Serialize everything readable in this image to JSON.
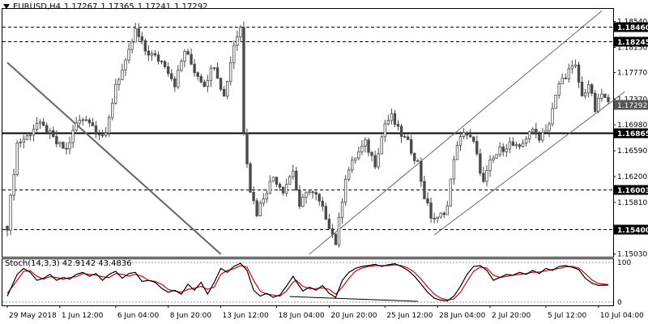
{
  "header": {
    "symbol": "EURUSD,H4",
    "open": "1.17267",
    "high": "1.17365",
    "low": "1.17241",
    "close": "1.17292"
  },
  "stoch_header": {
    "name": "Stoch(14,3,3)",
    "main": "42.9142",
    "signal": "43.4836"
  },
  "colors": {
    "background": "#ffffff",
    "candle": "#4a4a4a",
    "level": "#000000",
    "trend": "#666666",
    "stoch_main": "#000000",
    "stoch_signal": "#dd0000"
  },
  "chart_data": {
    "type": "candlestick",
    "ylim": [
      1.1499,
      1.1873
    ],
    "y_ticks": [
      "1.18540",
      "1.18150",
      "1.17770",
      "1.17370",
      "1.16980",
      "1.16590",
      "1.16200",
      "1.15810",
      "1.15400",
      "1.15030"
    ],
    "x_ticks": [
      "29 May 2018",
      "1 Jun 12:00",
      "6 Jun 04:00",
      "8 Jun 20:00",
      "13 Jun 12:00",
      "18 Jun 04:00",
      "20 Jun 20:00",
      "25 Jun 12:00",
      "28 Jun 04:00",
      "2 Jul 20:00",
      "5 Jul 12:00",
      "10 Jul 04:00"
    ],
    "levels": [
      {
        "label": "1.18460",
        "value": 1.1846,
        "style": "dashed"
      },
      {
        "label": "1.18245",
        "value": 1.18245,
        "style": "dashed"
      },
      {
        "label": "1.16865",
        "value": 1.16865,
        "style": "solid"
      },
      {
        "label": "1.16003",
        "value": 1.16003,
        "style": "dashed"
      },
      {
        "label": "1.15400",
        "value": 1.154,
        "style": "dashed"
      }
    ],
    "current_price": {
      "label": "1.17292",
      "value": 1.17292
    },
    "trend_lines": [
      {
        "name": "downtrend",
        "points": [
          [
            0,
            1.1792
          ],
          [
            65,
            1.1503
          ]
        ],
        "color": "#666666"
      },
      {
        "name": "channel-lower",
        "points": [
          [
            130,
            1.1532
          ],
          [
            188,
            1.1748
          ]
        ],
        "color": "#666666"
      },
      {
        "name": "channel-upper",
        "points": [
          [
            92,
            1.1503
          ],
          [
            181,
            1.187
          ]
        ],
        "color": "#666666"
      }
    ],
    "price_path": [
      [
        0,
        1.1545
      ],
      [
        3,
        1.167
      ],
      [
        6,
        1.168
      ],
      [
        9,
        1.17
      ],
      [
        12,
        1.169
      ],
      [
        15,
        1.167
      ],
      [
        18,
        1.166
      ],
      [
        21,
        1.17
      ],
      [
        24,
        1.171
      ],
      [
        27,
        1.169
      ],
      [
        30,
        1.168
      ],
      [
        33,
        1.176
      ],
      [
        36,
        1.179
      ],
      [
        39,
        1.184
      ],
      [
        42,
        1.181
      ],
      [
        45,
        1.18
      ],
      [
        48,
        1.179
      ],
      [
        51,
        1.176
      ],
      [
        54,
        1.181
      ],
      [
        57,
        1.178
      ],
      [
        60,
        1.176
      ],
      [
        63,
        1.179
      ],
      [
        66,
        1.174
      ],
      [
        69,
        1.182
      ],
      [
        71,
        1.1845
      ],
      [
        72,
        1.169
      ],
      [
        74,
        1.16
      ],
      [
        76,
        1.1565
      ],
      [
        78,
        1.159
      ],
      [
        81,
        1.162
      ],
      [
        84,
        1.16
      ],
      [
        87,
        1.163
      ],
      [
        89,
        1.157
      ],
      [
        91,
        1.16
      ],
      [
        94,
        1.159
      ],
      [
        97,
        1.156
      ],
      [
        100,
        1.152
      ],
      [
        103,
        1.162
      ],
      [
        106,
        1.165
      ],
      [
        109,
        1.167
      ],
      [
        112,
        1.164
      ],
      [
        115,
        1.17
      ],
      [
        117,
        1.171
      ],
      [
        119,
        1.169
      ],
      [
        122,
        1.167
      ],
      [
        125,
        1.164
      ],
      [
        127,
        1.159
      ],
      [
        129,
        1.156
      ],
      [
        131,
        1.1555
      ],
      [
        134,
        1.1575
      ],
      [
        136,
        1.165
      ],
      [
        139,
        1.169
      ],
      [
        142,
        1.167
      ],
      [
        145,
        1.161
      ],
      [
        147,
        1.164
      ],
      [
        150,
        1.166
      ],
      [
        153,
        1.167
      ],
      [
        156,
        1.166
      ],
      [
        159,
        1.169
      ],
      [
        162,
        1.168
      ],
      [
        165,
        1.17
      ],
      [
        168,
        1.176
      ],
      [
        171,
        1.178
      ],
      [
        173,
        1.1785
      ],
      [
        175,
        1.174
      ],
      [
        177,
        1.176
      ],
      [
        179,
        1.172
      ],
      [
        181,
        1.1745
      ],
      [
        183,
        1.1729
      ]
    ],
    "oscillator": {
      "name": "Stoch(14,3,3)",
      "ylim": [
        0,
        100
      ],
      "y_ticks": [
        "100",
        "0"
      ],
      "main_line": [
        [
          0,
          15
        ],
        [
          3,
          70
        ],
        [
          5,
          85
        ],
        [
          7,
          75
        ],
        [
          9,
          55
        ],
        [
          11,
          60
        ],
        [
          13,
          70
        ],
        [
          15,
          55
        ],
        [
          17,
          62
        ],
        [
          19,
          58
        ],
        [
          21,
          70
        ],
        [
          23,
          75
        ],
        [
          25,
          65
        ],
        [
          27,
          72
        ],
        [
          29,
          55
        ],
        [
          31,
          70
        ],
        [
          33,
          78
        ],
        [
          35,
          60
        ],
        [
          37,
          72
        ],
        [
          39,
          75
        ],
        [
          41,
          52
        ],
        [
          43,
          55
        ],
        [
          45,
          50
        ],
        [
          47,
          35
        ],
        [
          49,
          25
        ],
        [
          51,
          30
        ],
        [
          53,
          20
        ],
        [
          55,
          45
        ],
        [
          57,
          30
        ],
        [
          59,
          50
        ],
        [
          61,
          20
        ],
        [
          63,
          50
        ],
        [
          65,
          85
        ],
        [
          67,
          75
        ],
        [
          69,
          90
        ],
        [
          71,
          98
        ],
        [
          73,
          80
        ],
        [
          75,
          30
        ],
        [
          77,
          15
        ],
        [
          79,
          22
        ],
        [
          81,
          12
        ],
        [
          83,
          18
        ],
        [
          85,
          40
        ],
        [
          87,
          65
        ],
        [
          88,
          52
        ],
        [
          90,
          28
        ],
        [
          92,
          38
        ],
        [
          94,
          30
        ],
        [
          96,
          42
        ],
        [
          98,
          22
        ],
        [
          100,
          12
        ],
        [
          102,
          55
        ],
        [
          104,
          75
        ],
        [
          106,
          85
        ],
        [
          108,
          90
        ],
        [
          110,
          92
        ],
        [
          112,
          95
        ],
        [
          114,
          90
        ],
        [
          116,
          94
        ],
        [
          118,
          97
        ],
        [
          120,
          90
        ],
        [
          122,
          80
        ],
        [
          124,
          65
        ],
        [
          126,
          45
        ],
        [
          128,
          25
        ],
        [
          130,
          10
        ],
        [
          132,
          5
        ],
        [
          134,
          3
        ],
        [
          136,
          15
        ],
        [
          138,
          40
        ],
        [
          140,
          70
        ],
        [
          142,
          90
        ],
        [
          144,
          92
        ],
        [
          146,
          80
        ],
        [
          148,
          55
        ],
        [
          150,
          62
        ],
        [
          152,
          70
        ],
        [
          154,
          68
        ],
        [
          156,
          75
        ],
        [
          158,
          70
        ],
        [
          160,
          80
        ],
        [
          162,
          72
        ],
        [
          164,
          85
        ],
        [
          166,
          80
        ],
        [
          168,
          90
        ],
        [
          170,
          92
        ],
        [
          172,
          88
        ],
        [
          174,
          82
        ],
        [
          176,
          60
        ],
        [
          178,
          48
        ],
        [
          180,
          42
        ],
        [
          183,
          43
        ]
      ],
      "signal_line": [
        [
          0,
          22
        ],
        [
          3,
          55
        ],
        [
          5,
          78
        ],
        [
          7,
          79
        ],
        [
          9,
          65
        ],
        [
          11,
          58
        ],
        [
          13,
          64
        ],
        [
          15,
          62
        ],
        [
          17,
          58
        ],
        [
          19,
          62
        ],
        [
          21,
          64
        ],
        [
          23,
          72
        ],
        [
          25,
          70
        ],
        [
          27,
          68
        ],
        [
          29,
          64
        ],
        [
          31,
          62
        ],
        [
          33,
          72
        ],
        [
          35,
          70
        ],
        [
          37,
          66
        ],
        [
          39,
          70
        ],
        [
          41,
          65
        ],
        [
          43,
          55
        ],
        [
          45,
          52
        ],
        [
          47,
          45
        ],
        [
          49,
          32
        ],
        [
          51,
          28
        ],
        [
          53,
          25
        ],
        [
          55,
          32
        ],
        [
          57,
          35
        ],
        [
          59,
          40
        ],
        [
          61,
          32
        ],
        [
          63,
          38
        ],
        [
          65,
          70
        ],
        [
          67,
          80
        ],
        [
          69,
          84
        ],
        [
          71,
          92
        ],
        [
          73,
          88
        ],
        [
          75,
          55
        ],
        [
          77,
          28
        ],
        [
          79,
          20
        ],
        [
          81,
          18
        ],
        [
          83,
          15
        ],
        [
          85,
          28
        ],
        [
          87,
          50
        ],
        [
          88,
          55
        ],
        [
          90,
          40
        ],
        [
          92,
          34
        ],
        [
          94,
          34
        ],
        [
          96,
          36
        ],
        [
          98,
          32
        ],
        [
          100,
          20
        ],
        [
          102,
          38
        ],
        [
          104,
          60
        ],
        [
          106,
          78
        ],
        [
          108,
          86
        ],
        [
          110,
          90
        ],
        [
          112,
          92
        ],
        [
          114,
          92
        ],
        [
          116,
          92
        ],
        [
          118,
          94
        ],
        [
          120,
          92
        ],
        [
          122,
          86
        ],
        [
          124,
          75
        ],
        [
          126,
          58
        ],
        [
          128,
          38
        ],
        [
          130,
          20
        ],
        [
          132,
          10
        ],
        [
          134,
          6
        ],
        [
          136,
          8
        ],
        [
          138,
          25
        ],
        [
          140,
          52
        ],
        [
          142,
          78
        ],
        [
          144,
          88
        ],
        [
          146,
          86
        ],
        [
          148,
          68
        ],
        [
          150,
          62
        ],
        [
          152,
          65
        ],
        [
          154,
          68
        ],
        [
          156,
          70
        ],
        [
          158,
          72
        ],
        [
          160,
          75
        ],
        [
          162,
          76
        ],
        [
          164,
          79
        ],
        [
          166,
          82
        ],
        [
          168,
          85
        ],
        [
          170,
          89
        ],
        [
          172,
          90
        ],
        [
          174,
          86
        ],
        [
          176,
          72
        ],
        [
          178,
          56
        ],
        [
          180,
          47
        ],
        [
          183,
          44
        ]
      ],
      "divergence_lines": [
        {
          "points": [
            [
              86,
              14
            ],
            [
              125,
              2
            ]
          ],
          "color": "#000000"
        }
      ]
    }
  }
}
